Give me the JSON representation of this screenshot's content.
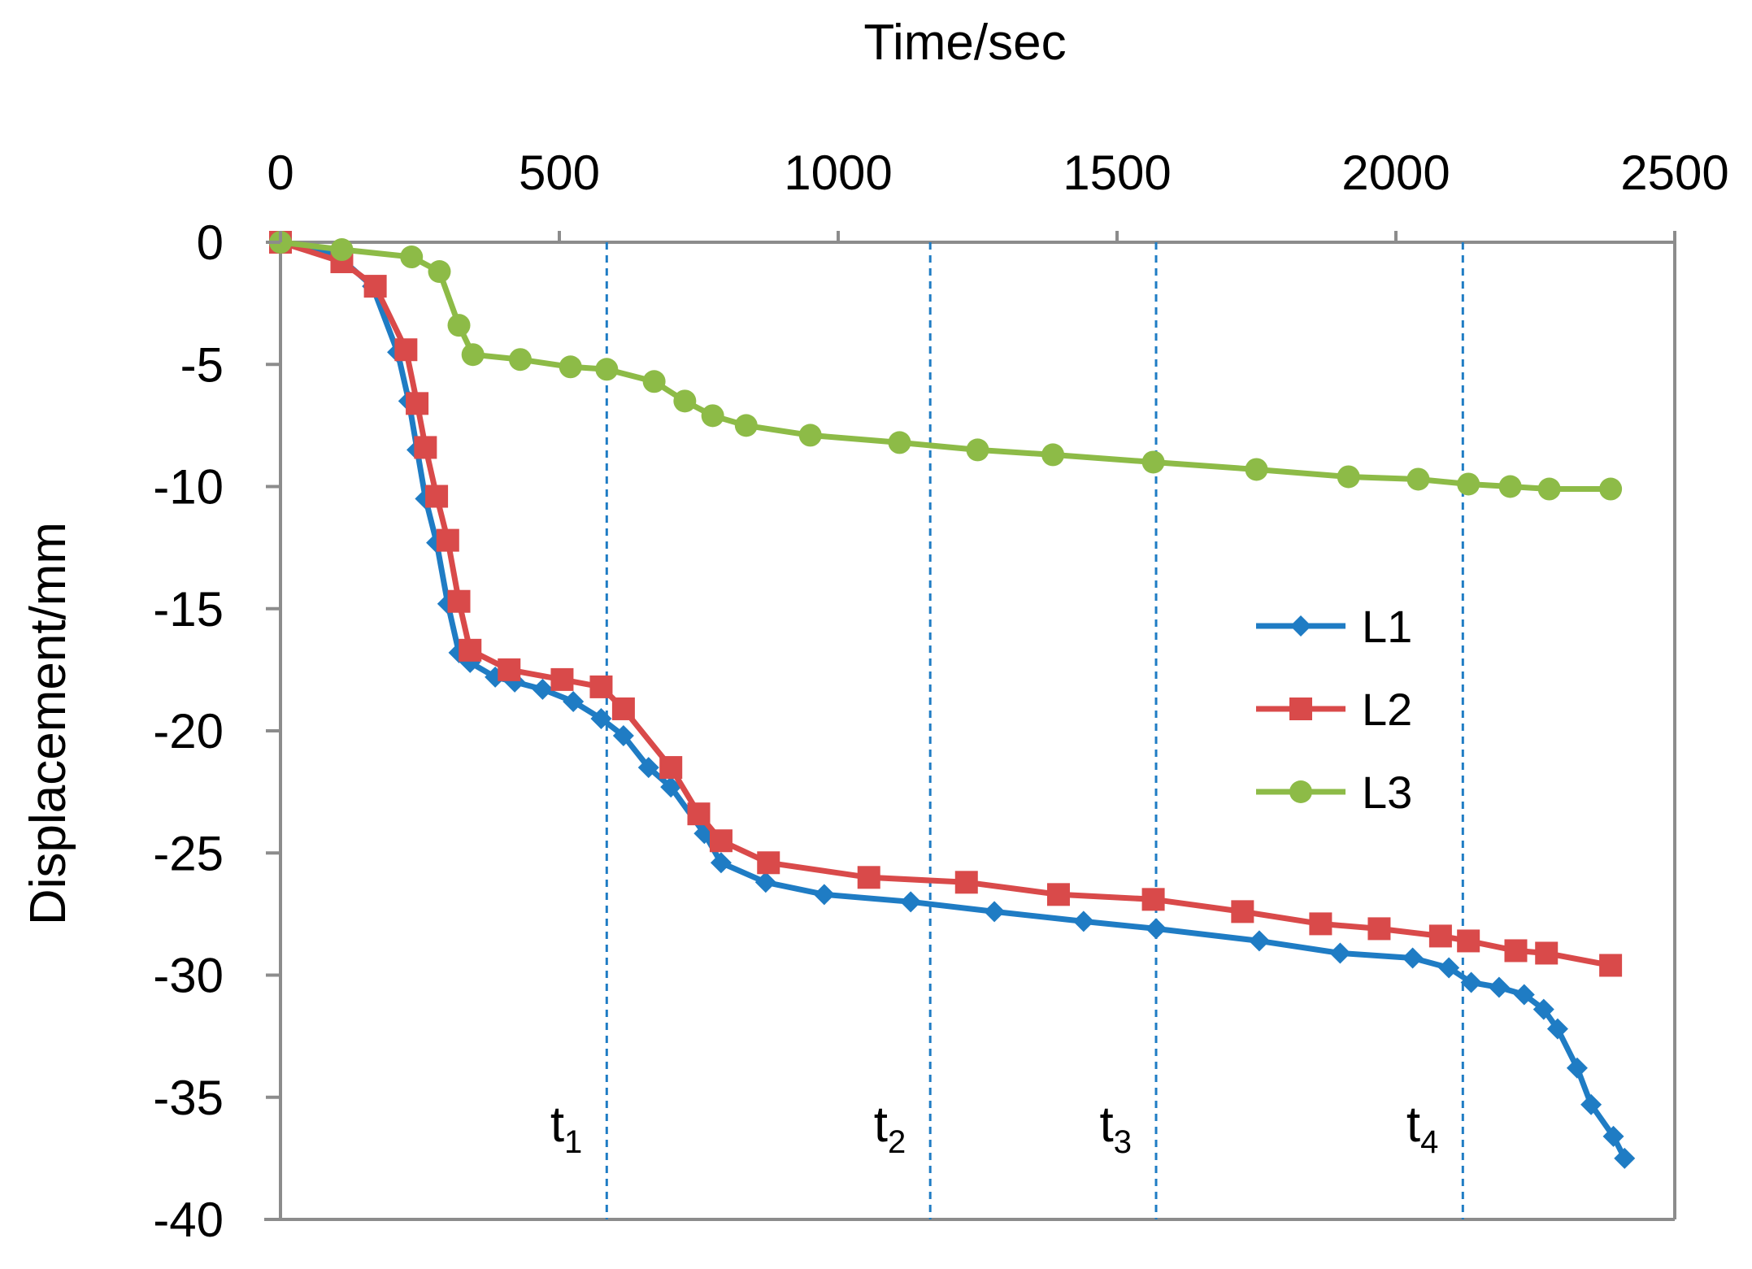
{
  "chart_data": {
    "type": "line",
    "xlabel": "Time/sec",
    "ylabel": "Displacement/mm",
    "xaxis_position": "top",
    "xlim": [
      0,
      2500
    ],
    "ylim": [
      -40,
      0
    ],
    "xticks": [
      0,
      500,
      1000,
      1500,
      2000,
      2500
    ],
    "yticks": [
      0,
      -5,
      -10,
      -15,
      -20,
      -25,
      -30,
      -35,
      -40
    ],
    "grid": false,
    "legend_position": "right-center",
    "series": [
      {
        "name": "L1",
        "color": "#1f7cc4",
        "marker": "diamond",
        "x": [
          0,
          100,
          165,
          210,
          230,
          245,
          260,
          280,
          300,
          320,
          340,
          385,
          420,
          470,
          525,
          575,
          615,
          660,
          700,
          760,
          790,
          870,
          975,
          1130,
          1280,
          1440,
          1570,
          1755,
          1900,
          2030,
          2095,
          2135,
          2185,
          2230,
          2265,
          2290,
          2325,
          2350,
          2390,
          2410
        ],
        "y": [
          0,
          -0.5,
          -1.8,
          -4.5,
          -6.5,
          -8.5,
          -10.5,
          -12.3,
          -14.8,
          -16.8,
          -17.2,
          -17.8,
          -18,
          -18.3,
          -18.8,
          -19.5,
          -20.2,
          -21.5,
          -22.3,
          -24.2,
          -25.4,
          -26.2,
          -26.7,
          -27,
          -27.4,
          -27.8,
          -28.1,
          -28.6,
          -29.1,
          -29.3,
          -29.7,
          -30.3,
          -30.5,
          -30.8,
          -31.4,
          -32.2,
          -33.8,
          -35.3,
          -36.6,
          -37.5
        ]
      },
      {
        "name": "L2",
        "color": "#d94a4a",
        "marker": "square",
        "x": [
          0,
          110,
          170,
          225,
          245,
          260,
          280,
          300,
          320,
          340,
          410,
          505,
          575,
          615,
          700,
          750,
          790,
          875,
          1055,
          1230,
          1395,
          1565,
          1725,
          1865,
          1970,
          2080,
          2130,
          2215,
          2270,
          2385
        ],
        "y": [
          0,
          -0.8,
          -1.8,
          -4.4,
          -6.6,
          -8.4,
          -10.4,
          -12.2,
          -14.7,
          -16.7,
          -17.5,
          -17.9,
          -18.2,
          -19.1,
          -21.5,
          -23.4,
          -24.5,
          -25.4,
          -26,
          -26.2,
          -26.7,
          -26.9,
          -27.4,
          -27.9,
          -28.1,
          -28.4,
          -28.6,
          -29,
          -29.1,
          -29.6
        ]
      },
      {
        "name": "L3",
        "color": "#8dbb47",
        "marker": "circle",
        "x": [
          0,
          110,
          235,
          285,
          320,
          345,
          430,
          520,
          585,
          670,
          725,
          775,
          835,
          950,
          1110,
          1250,
          1385,
          1565,
          1750,
          1915,
          2040,
          2130,
          2205,
          2275,
          2385
        ],
        "y": [
          0,
          -0.3,
          -0.6,
          -1.2,
          -3.4,
          -4.6,
          -4.8,
          -5.1,
          -5.2,
          -5.7,
          -6.5,
          -7.1,
          -7.5,
          -7.9,
          -8.2,
          -8.5,
          -8.7,
          -9,
          -9.3,
          -9.6,
          -9.7,
          -9.9,
          -10,
          -10.1,
          -10.1
        ]
      }
    ],
    "vertical_markers": [
      {
        "label": "t",
        "sub": "1",
        "x": 585
      },
      {
        "label": "t",
        "sub": "2",
        "x": 1165
      },
      {
        "label": "t",
        "sub": "3",
        "x": 1570
      },
      {
        "label": "t",
        "sub": "4",
        "x": 2120
      }
    ],
    "marker_line_color": "#1f7cc4"
  }
}
